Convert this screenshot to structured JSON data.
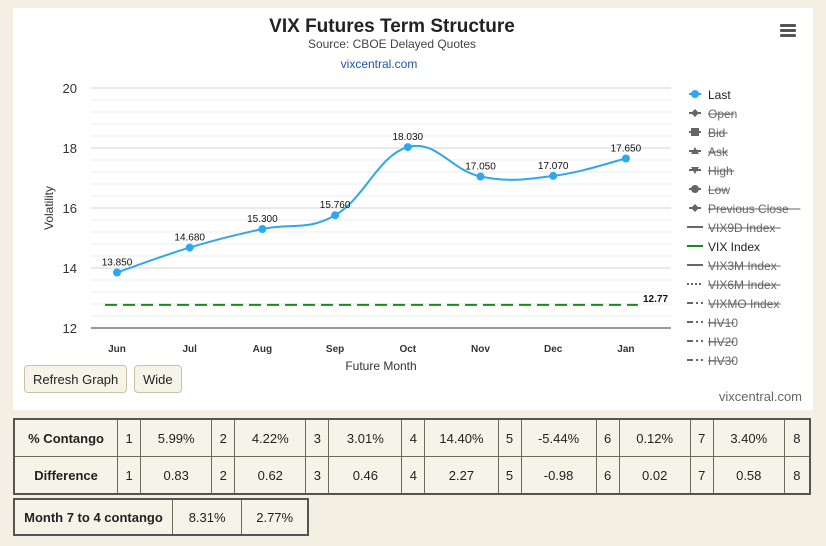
{
  "chart_data": {
    "type": "line",
    "title": "VIX Futures Term Structure",
    "subtitle": "Source: CBOE Delayed Quotes",
    "source_link": "vixcentral.com",
    "xlabel": "Future Month",
    "ylabel": "Volatility",
    "categories": [
      "Jun",
      "Jul",
      "Aug",
      "Sep",
      "Oct",
      "Nov",
      "Dec",
      "Jan"
    ],
    "ylim": [
      12,
      20
    ],
    "yticks": [
      12,
      14,
      16,
      18,
      20
    ],
    "series": [
      {
        "name": "Last",
        "values": [
          13.85,
          14.68,
          15.3,
          15.76,
          18.03,
          17.05,
          17.07,
          17.65
        ],
        "labels": [
          "13.850",
          "14.680",
          "15.300",
          "15.760",
          "18.030",
          "17.050",
          "17.070",
          "17.650"
        ],
        "color": "#2ea8ec"
      },
      {
        "name": "VIX Index",
        "values": [
          12.77,
          12.77,
          12.77,
          12.77,
          12.77,
          12.77,
          12.77,
          12.77
        ],
        "end_label": "12.77",
        "color": "#1a8a1a",
        "dash": "dashed"
      }
    ],
    "legend_position": "right",
    "legend": [
      {
        "name": "Last",
        "marker": "dot",
        "enabled": true,
        "color": "#2ea8ec"
      },
      {
        "name": "Open",
        "marker": "diamond",
        "enabled": false
      },
      {
        "name": "Bid",
        "marker": "square",
        "enabled": false
      },
      {
        "name": "Ask",
        "marker": "triangle",
        "enabled": false
      },
      {
        "name": "High",
        "marker": "triangle-down",
        "enabled": false
      },
      {
        "name": "Low",
        "marker": "dot",
        "enabled": false
      },
      {
        "name": "Previous Close",
        "marker": "diamond",
        "enabled": false
      },
      {
        "name": "VIX9D Index",
        "marker": "solid",
        "enabled": false
      },
      {
        "name": "VIX Index",
        "marker": "solid",
        "enabled": true,
        "color": "#1a8a1a"
      },
      {
        "name": "VIX3M Index",
        "marker": "solid",
        "enabled": false
      },
      {
        "name": "VIX6M Index",
        "marker": "dotted",
        "enabled": false
      },
      {
        "name": "VIXMO Index",
        "marker": "dashdot",
        "enabled": false
      },
      {
        "name": "HV10",
        "marker": "dashdot",
        "enabled": false
      },
      {
        "name": "HV20",
        "marker": "dashdot",
        "enabled": false
      },
      {
        "name": "HV30",
        "marker": "dashdot",
        "enabled": false
      }
    ],
    "grid": true
  },
  "toolbar": {
    "refresh_label": "Refresh Graph",
    "wide_label": "Wide",
    "menu_icon": "hamburger-menu-icon"
  },
  "watermark": "vixcentral.com",
  "contango_table": {
    "rows": [
      {
        "label": "% Contango",
        "cells": [
          [
            "1",
            "5.99%"
          ],
          [
            "2",
            "4.22%"
          ],
          [
            "3",
            "3.01%"
          ],
          [
            "4",
            "14.40%"
          ],
          [
            "5",
            "-5.44%"
          ],
          [
            "6",
            "0.12%"
          ],
          [
            "7",
            "3.40%"
          ]
        ],
        "last": "8"
      },
      {
        "label": "Difference",
        "cells": [
          [
            "1",
            "0.83"
          ],
          [
            "2",
            "0.62"
          ],
          [
            "3",
            "0.46"
          ],
          [
            "4",
            "2.27"
          ],
          [
            "5",
            "-0.98"
          ],
          [
            "6",
            "0.02"
          ],
          [
            "7",
            "0.58"
          ]
        ],
        "last": "8"
      }
    ]
  },
  "month_table": {
    "label": "Month 7 to 4 contango",
    "values": [
      "8.31%",
      "2.77%"
    ]
  }
}
